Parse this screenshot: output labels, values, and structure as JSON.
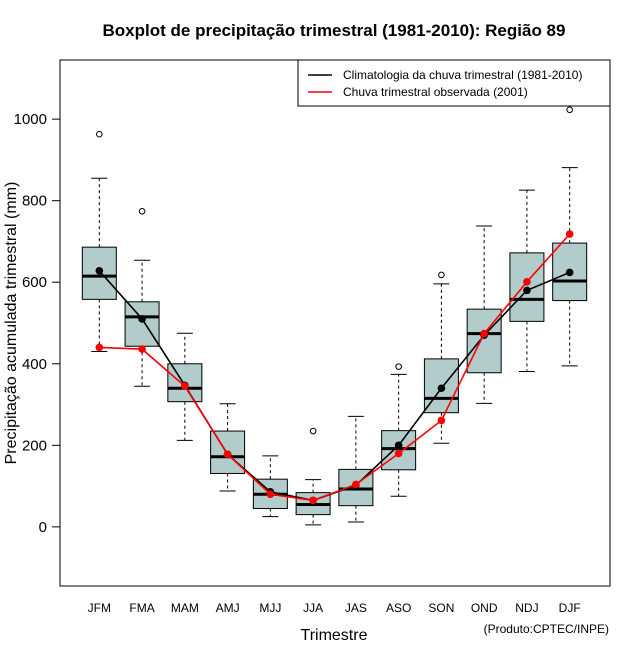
{
  "chart_data": {
    "type": "boxplot",
    "title": "Boxplot de precipitação trimestral (1981-2010): Região 89",
    "xlabel": "Trimestre",
    "ylabel": "Precipitação acumulada trimestral (mm)",
    "credit": "(Produto:CPTEC/INPE)",
    "ylim": [
      -145,
      1145
    ],
    "yticks": [
      0,
      200,
      400,
      600,
      800,
      1000
    ],
    "categories": [
      "JFM",
      "FMA",
      "MAM",
      "AMJ",
      "MJJ",
      "JJA",
      "JAS",
      "ASO",
      "SON",
      "OND",
      "NDJ",
      "DJF"
    ],
    "boxes": [
      {
        "whisker_low": 430,
        "q1": 558,
        "median": 615,
        "q3": 686,
        "whisker_high": 855,
        "outliers": [
          963
        ]
      },
      {
        "whisker_low": 345,
        "q1": 443,
        "median": 515,
        "q3": 552,
        "whisker_high": 654,
        "outliers": [
          774
        ]
      },
      {
        "whisker_low": 212,
        "q1": 307,
        "median": 340,
        "q3": 400,
        "whisker_high": 475,
        "outliers": []
      },
      {
        "whisker_low": 88,
        "q1": 131,
        "median": 172,
        "q3": 235,
        "whisker_high": 302,
        "outliers": []
      },
      {
        "whisker_low": 25,
        "q1": 45,
        "median": 80,
        "q3": 117,
        "whisker_high": 174,
        "outliers": []
      },
      {
        "whisker_low": 5,
        "q1": 30,
        "median": 55,
        "q3": 84,
        "whisker_high": 116,
        "outliers": [
          235
        ]
      },
      {
        "whisker_low": 12,
        "q1": 52,
        "median": 93,
        "q3": 141,
        "whisker_high": 271,
        "outliers": []
      },
      {
        "whisker_low": 75,
        "q1": 140,
        "median": 192,
        "q3": 236,
        "whisker_high": 374,
        "outliers": [
          393
        ]
      },
      {
        "whisker_low": 205,
        "q1": 280,
        "median": 315,
        "q3": 412,
        "whisker_high": 596,
        "outliers": [
          618
        ]
      },
      {
        "whisker_low": 303,
        "q1": 378,
        "median": 474,
        "q3": 534,
        "whisker_high": 738,
        "outliers": []
      },
      {
        "whisker_low": 381,
        "q1": 504,
        "median": 558,
        "q3": 672,
        "whisker_high": 826,
        "outliers": []
      },
      {
        "whisker_low": 395,
        "q1": 555,
        "median": 603,
        "q3": 696,
        "whisker_high": 881,
        "outliers": [
          1023
        ]
      }
    ],
    "series": [
      {
        "name": "Climatologia da chuva trimestral (1981-2010)",
        "color": "#000000",
        "values": [
          628,
          510,
          347,
          178,
          86,
          65,
          102,
          200,
          340,
          470,
          580,
          624
        ]
      },
      {
        "name": "Chuva trimestral observada (2001)",
        "color": "#ff0000",
        "values": [
          440,
          436,
          345,
          178,
          80,
          65,
          104,
          180,
          261,
          474,
          601,
          718
        ]
      }
    ],
    "box_fill": "#b2cbcb",
    "legend_position": "top-right"
  }
}
